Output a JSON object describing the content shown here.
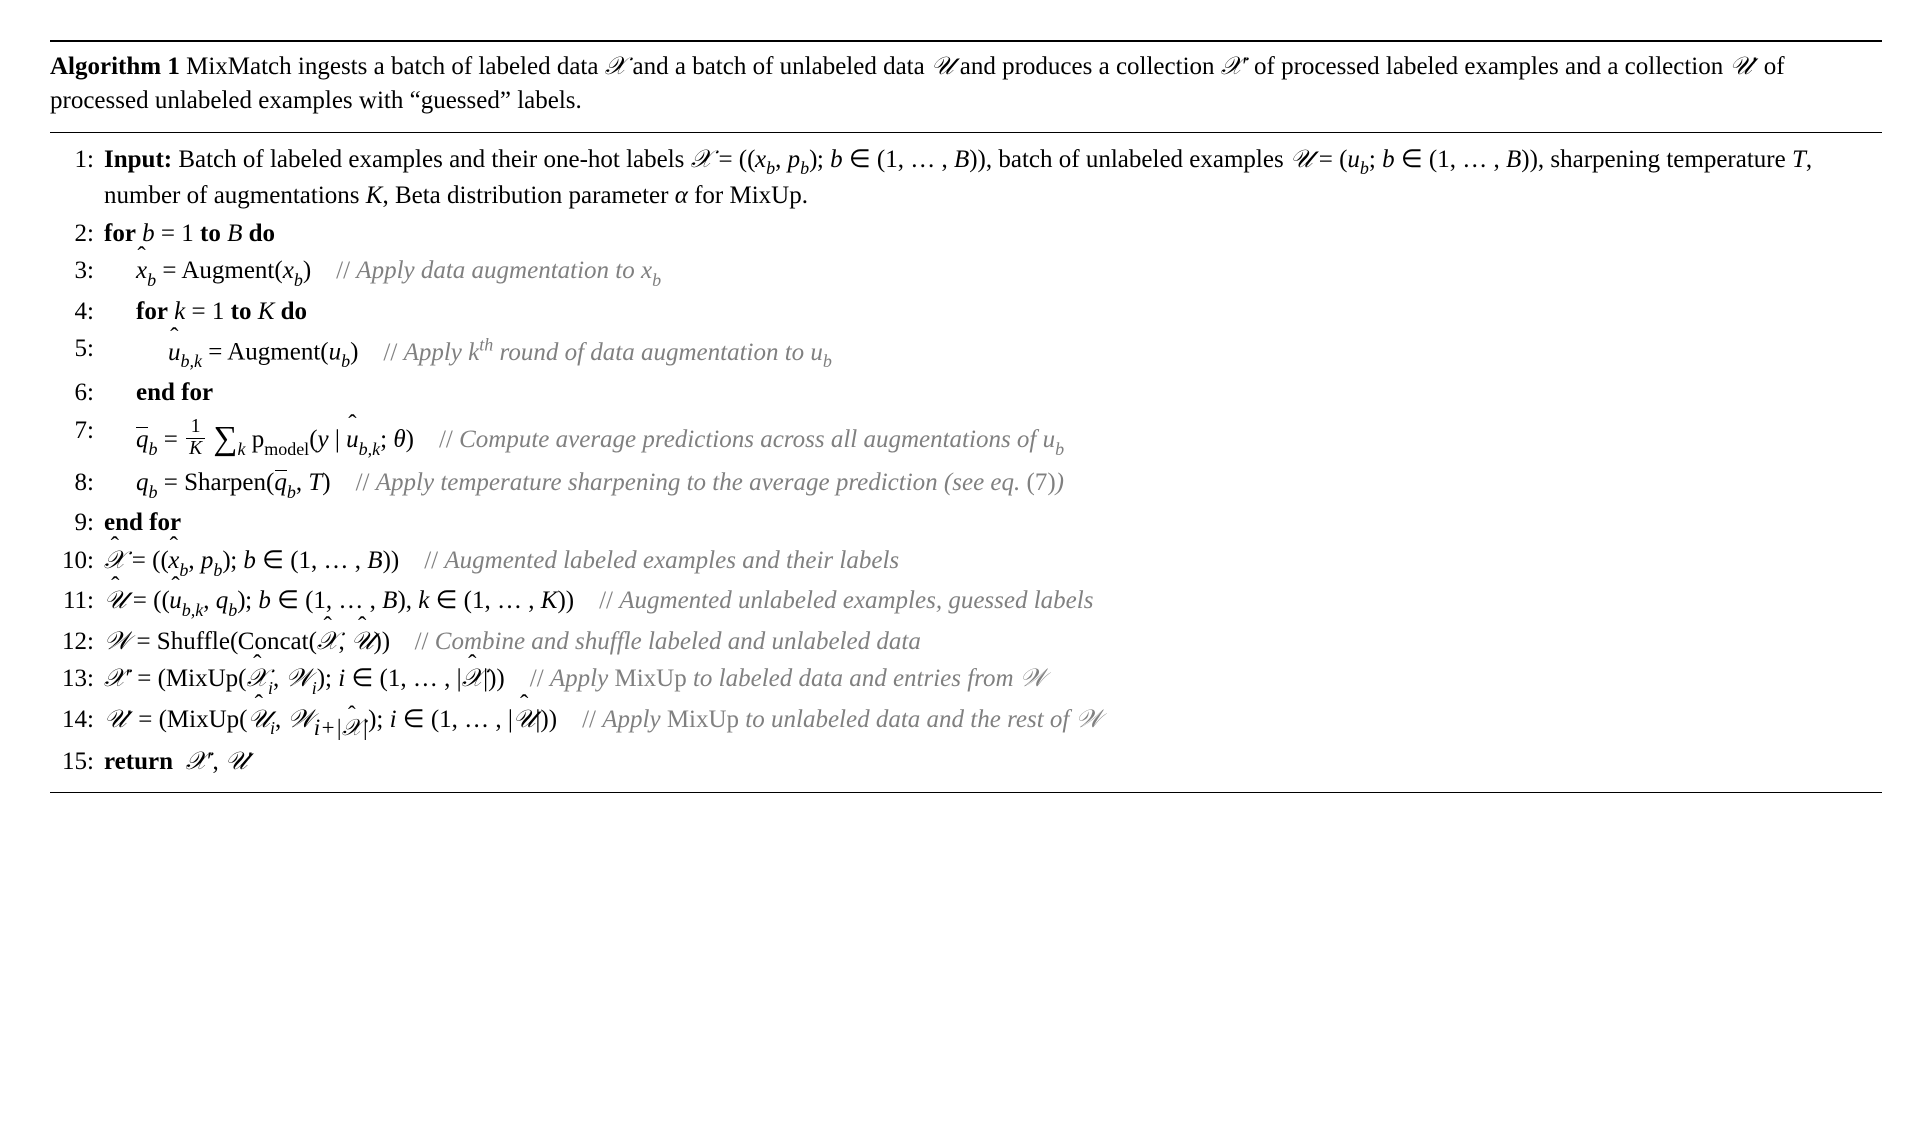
{
  "colors": {
    "text": "#000000",
    "comment": "#808080",
    "background": "#ffffff",
    "rule": "#000000"
  },
  "typography": {
    "font_family": "Times New Roman",
    "base_fontsize_pt": 19,
    "comment_style": "italic",
    "keyword_weight": "bold"
  },
  "algorithm": {
    "number": "1",
    "label_prefix": "Algorithm",
    "caption": "MixMatch ingests a batch of labeled data 𝒳 and a batch of unlabeled data 𝒰 and produces a collection 𝒳′ of processed labeled examples and a collection 𝒰′ of processed unlabeled examples with “guessed” labels.",
    "lines": [
      {
        "n": "1:",
        "keyword": "Input:",
        "indent": 0,
        "text": "Batch of labeled examples and their one-hot labels 𝒳 = ((x_b, p_b); b ∈ (1, … , B)), batch of unlabeled examples 𝒰 = (u_b; b ∈ (1, … , B)), sharpening temperature T, number of augmentations K, Beta distribution parameter α for MixUp."
      },
      {
        "n": "2:",
        "keyword": "for",
        "indent": 0,
        "text": "b = 1 to B",
        "tail_keyword": "do"
      },
      {
        "n": "3:",
        "indent": 1,
        "text": "x̂_b = Augment(x_b)",
        "comment": "Apply data augmentation to x_b"
      },
      {
        "n": "4:",
        "keyword": "for",
        "indent": 1,
        "text": "k = 1 to K",
        "tail_keyword": "do"
      },
      {
        "n": "5:",
        "indent": 2,
        "text": "û_{b,k} = Augment(u_b)",
        "comment": "Apply k^{th} round of data augmentation to u_b"
      },
      {
        "n": "6:",
        "keyword": "end for",
        "indent": 1
      },
      {
        "n": "7:",
        "indent": 1,
        "text": "q̄_b = (1/K) Σ_k p_model(y | û_{b,k}; θ)",
        "comment": "Compute average predictions across all augmentations of u_b"
      },
      {
        "n": "8:",
        "indent": 1,
        "text": "q_b = Sharpen(q̄_b, T)",
        "comment": "Apply temperature sharpening to the average prediction (see eq. (7))"
      },
      {
        "n": "9:",
        "keyword": "end for",
        "indent": 0
      },
      {
        "n": "10:",
        "indent": 0,
        "text": "𝒳̂ = ((x̂_b, p_b); b ∈ (1, … , B))",
        "comment": "Augmented labeled examples and their labels"
      },
      {
        "n": "11:",
        "indent": 0,
        "text": "𝒰̂ = ((û_{b,k}, q_b); b ∈ (1, … , B), k ∈ (1, … , K))",
        "comment": "Augmented unlabeled examples, guessed labels"
      },
      {
        "n": "12:",
        "indent": 0,
        "text": "𝒲 = Shuffle(Concat(𝒳̂, 𝒰̂))",
        "comment": "Combine and shuffle labeled and unlabeled data"
      },
      {
        "n": "13:",
        "indent": 0,
        "text": "𝒳′ = (MixUp(𝒳̂_i, 𝒲_i); i ∈ (1, … , |𝒳̂|))",
        "comment": "Apply MixUp to labeled data and entries from 𝒲"
      },
      {
        "n": "14:",
        "indent": 0,
        "text": "𝒰′ = (MixUp(𝒰̂_i, 𝒲_{i+|𝒳̂|}); i ∈ (1, … , |𝒰̂|))",
        "comment": "Apply MixUp to unlabeled data and the rest of 𝒲"
      },
      {
        "n": "15:",
        "keyword": "return",
        "indent": 0,
        "text": "𝒳′, 𝒰′"
      }
    ]
  },
  "ui": {
    "algolabel": "Algorithm 1",
    "comment_prefix": "// "
  }
}
